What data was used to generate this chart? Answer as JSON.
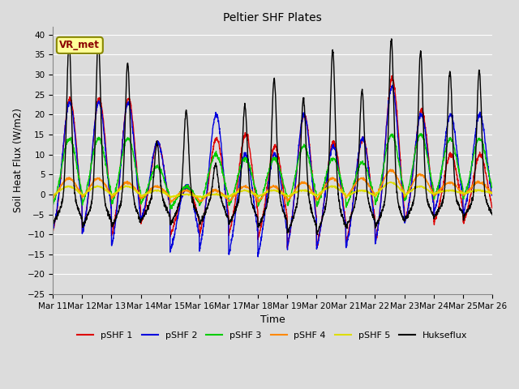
{
  "title": "Peltier SHF Plates",
  "xlabel": "Time",
  "ylabel": "Soil Heat Flux (W/m2)",
  "ylim": [
    -25,
    42
  ],
  "yticks": [
    -25,
    -20,
    -15,
    -10,
    -5,
    0,
    5,
    10,
    15,
    20,
    25,
    30,
    35,
    40
  ],
  "background_color": "#dcdcdc",
  "plot_bg_color": "#dcdcdc",
  "grid_color": "#ffffff",
  "line_colors": {
    "pSHF 1": "#dd0000",
    "pSHF 2": "#0000dd",
    "pSHF 3": "#00cc00",
    "pSHF 4": "#ff8800",
    "pSHF 5": "#dddd00",
    "Hukseflux": "#000000"
  },
  "annotation_text": "VR_met",
  "annotation_color": "#8b0000",
  "annotation_bg": "#ffff99",
  "annotation_edge": "#888800",
  "x_tick_labels": [
    "Mar 11",
    "Mar 12",
    "Mar 13",
    "Mar 14",
    "Mar 15",
    "Mar 16",
    "Mar 17",
    "Mar 18",
    "Mar 19",
    "Mar 20",
    "Mar 21",
    "Mar 22",
    "Mar 23",
    "Mar 24",
    "Mar 25",
    "Mar 26"
  ],
  "n_days": 15,
  "points_per_day": 144,
  "figsize": [
    6.4,
    4.8
  ],
  "dpi": 100
}
